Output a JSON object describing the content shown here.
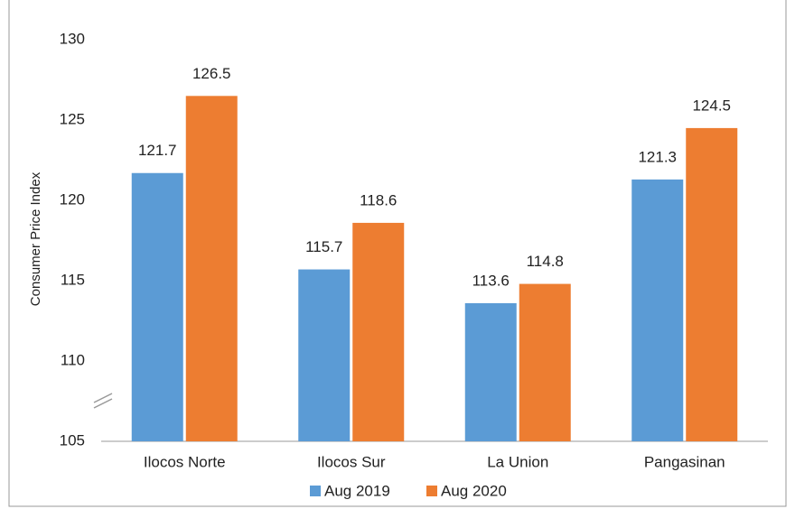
{
  "chart_data": {
    "type": "bar",
    "y_label": "Consumer Price Index",
    "categories": [
      "Ilocos Norte",
      "Ilocos Sur",
      "La Union",
      "Pangasinan"
    ],
    "series": [
      {
        "name": "Aug 2019",
        "color": "#5b9bd5",
        "values": [
          121.7,
          115.7,
          113.6,
          121.3
        ]
      },
      {
        "name": "Aug 2020",
        "color": "#ed7d31",
        "values": [
          126.5,
          118.6,
          114.8,
          124.5
        ]
      }
    ],
    "ylim": [
      105,
      130
    ],
    "yticks": [
      105,
      110,
      115,
      120,
      125,
      130
    ],
    "grid": false,
    "legend": "bottom"
  }
}
